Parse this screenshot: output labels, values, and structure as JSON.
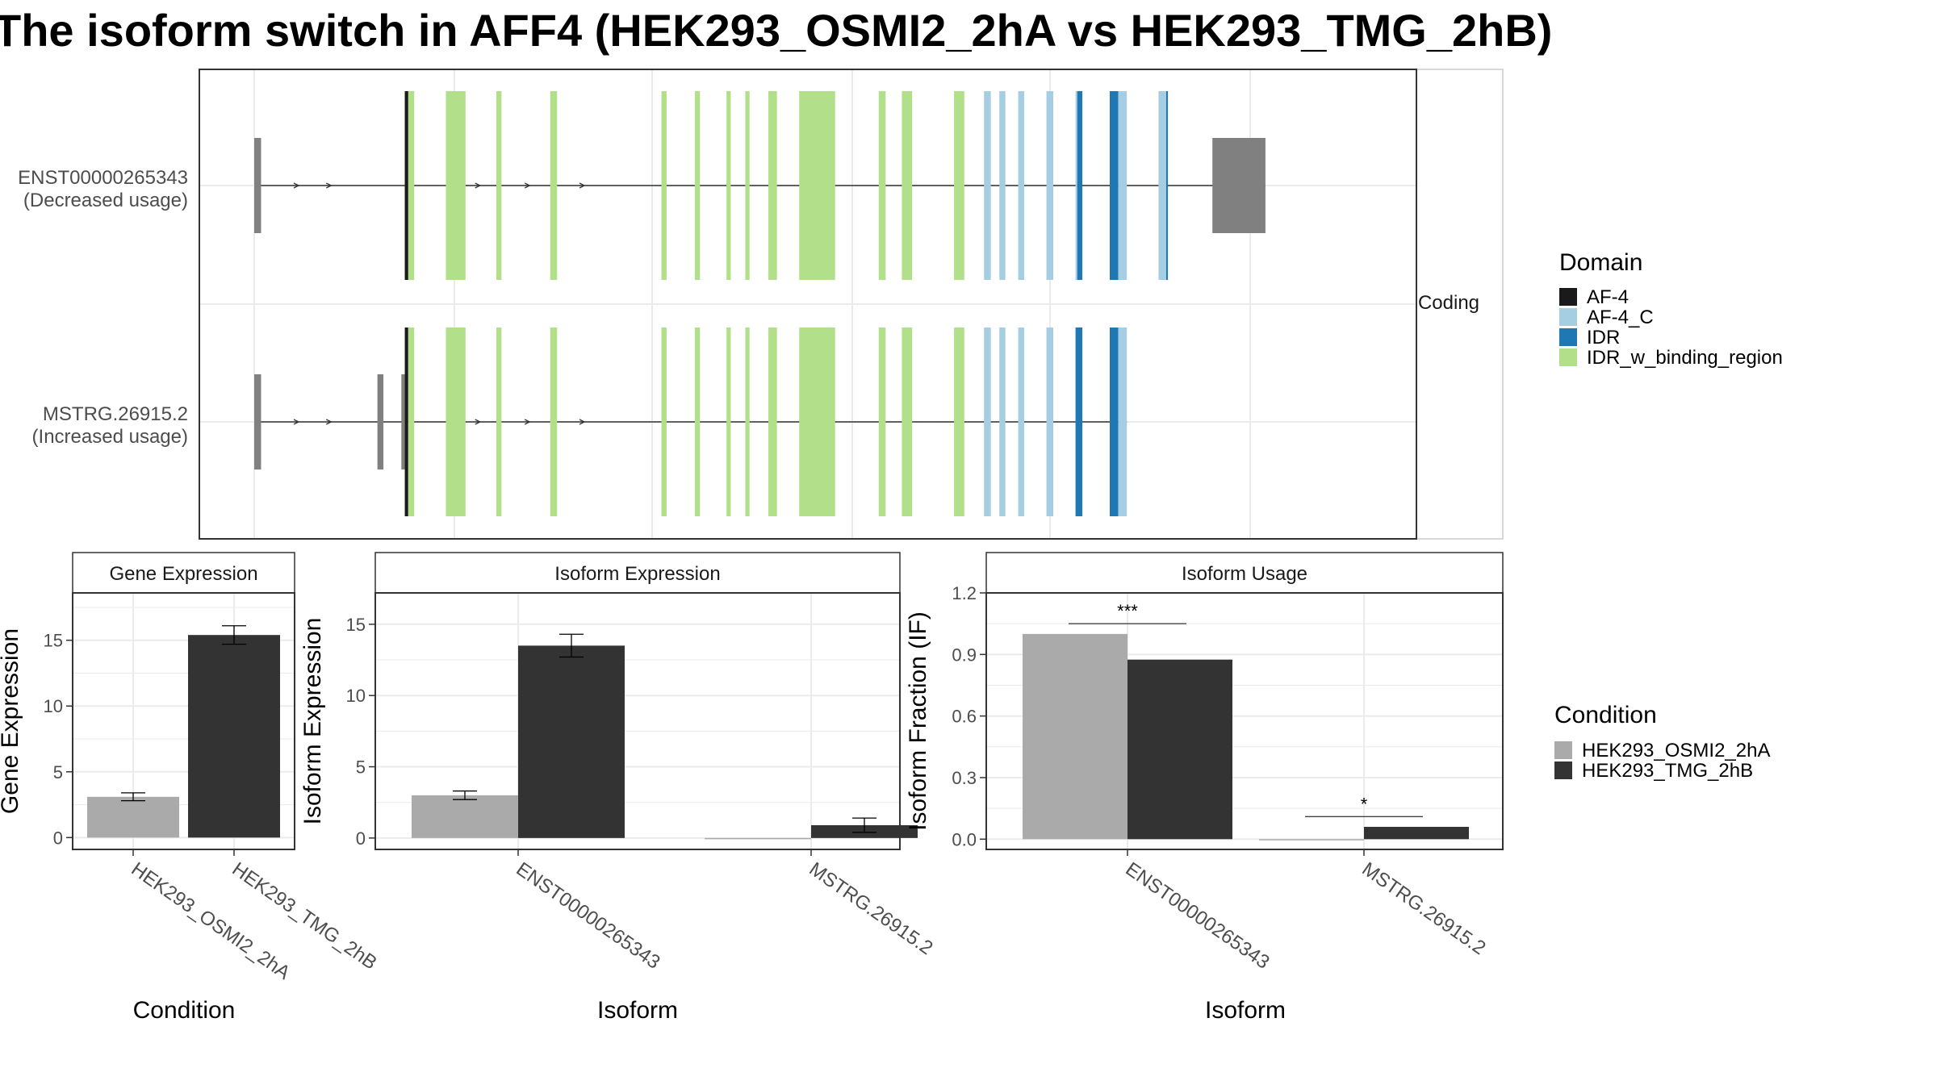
{
  "title": "The isoform switch in AFF4 (HEK293_OSMI2_2hA vs HEK293_TMG_2hB)",
  "colors": {
    "AF-4": "#1a1a1a",
    "AF-4_C": "#a6cee3",
    "IDR": "#1f78b4",
    "IDR_w_binding_region": "#b2df8a",
    "utr": "#808080",
    "cond1": "#aaaaaa",
    "cond2": "#333333"
  },
  "structure": {
    "strip_label": "Coding",
    "transcripts": [
      {
        "id": "ENST00000265343",
        "usage": "(Decreased usage)",
        "utr": [
          [
            0,
            8
          ],
          [
            1120,
            1182
          ]
        ],
        "coding": [
          [
            176,
            182
          ]
        ],
        "domains": [
          {
            "d": "AF-4",
            "s": 176,
            "e": 180
          },
          {
            "d": "IDR_w_binding_region",
            "s": 180,
            "e": 187
          },
          {
            "d": "IDR_w_binding_region",
            "s": 224,
            "e": 247
          },
          {
            "d": "IDR_w_binding_region",
            "s": 283,
            "e": 289
          },
          {
            "d": "IDR_w_binding_region",
            "s": 346,
            "e": 354
          },
          {
            "d": "IDR_w_binding_region",
            "s": 476,
            "e": 482
          },
          {
            "d": "IDR_w_binding_region",
            "s": 515,
            "e": 521
          },
          {
            "d": "IDR_w_binding_region",
            "s": 552,
            "e": 557
          },
          {
            "d": "IDR_w_binding_region",
            "s": 574,
            "e": 579
          },
          {
            "d": "IDR_w_binding_region",
            "s": 601,
            "e": 611
          },
          {
            "d": "IDR_w_binding_region",
            "s": 637,
            "e": 679
          },
          {
            "d": "IDR_w_binding_region",
            "s": 730,
            "e": 738
          },
          {
            "d": "IDR_w_binding_region",
            "s": 757,
            "e": 769
          },
          {
            "d": "IDR_w_binding_region",
            "s": 818,
            "e": 830
          },
          {
            "d": "AF-4_C",
            "s": 853,
            "e": 861
          },
          {
            "d": "AF-4_C",
            "s": 871,
            "e": 878
          },
          {
            "d": "AF-4_C",
            "s": 893,
            "e": 900
          },
          {
            "d": "AF-4_C",
            "s": 926,
            "e": 934
          },
          {
            "d": "AF-4_C",
            "s": 960,
            "e": 962
          },
          {
            "d": "IDR",
            "s": 962,
            "e": 968
          },
          {
            "d": "IDR",
            "s": 1000,
            "e": 1010
          },
          {
            "d": "AF-4_C",
            "s": 1010,
            "e": 1020
          },
          {
            "d": "AF-4_C",
            "s": 1057,
            "e": 1066
          },
          {
            "d": "IDR",
            "s": 1066,
            "e": 1068
          }
        ]
      },
      {
        "id": "MSTRG.26915.2",
        "usage": "(Increased usage)",
        "utr": [
          [
            0,
            8
          ],
          [
            144,
            151
          ],
          [
            172,
            176
          ]
        ],
        "coding": [],
        "domains": [
          {
            "d": "AF-4",
            "s": 176,
            "e": 180
          },
          {
            "d": "IDR_w_binding_region",
            "s": 180,
            "e": 187
          },
          {
            "d": "IDR_w_binding_region",
            "s": 224,
            "e": 247
          },
          {
            "d": "IDR_w_binding_region",
            "s": 283,
            "e": 289
          },
          {
            "d": "IDR_w_binding_region",
            "s": 346,
            "e": 354
          },
          {
            "d": "IDR_w_binding_region",
            "s": 476,
            "e": 482
          },
          {
            "d": "IDR_w_binding_region",
            "s": 515,
            "e": 521
          },
          {
            "d": "IDR_w_binding_region",
            "s": 552,
            "e": 557
          },
          {
            "d": "IDR_w_binding_region",
            "s": 574,
            "e": 579
          },
          {
            "d": "IDR_w_binding_region",
            "s": 601,
            "e": 611
          },
          {
            "d": "IDR_w_binding_region",
            "s": 637,
            "e": 679
          },
          {
            "d": "IDR_w_binding_region",
            "s": 730,
            "e": 738
          },
          {
            "d": "IDR_w_binding_region",
            "s": 757,
            "e": 769
          },
          {
            "d": "IDR_w_binding_region",
            "s": 818,
            "e": 830
          },
          {
            "d": "AF-4_C",
            "s": 853,
            "e": 861
          },
          {
            "d": "AF-4_C",
            "s": 871,
            "e": 878
          },
          {
            "d": "AF-4_C",
            "s": 893,
            "e": 900
          },
          {
            "d": "AF-4_C",
            "s": 926,
            "e": 934
          },
          {
            "d": "IDR",
            "s": 960,
            "e": 968
          },
          {
            "d": "IDR",
            "s": 1000,
            "e": 1010
          },
          {
            "d": "AF-4_C",
            "s": 1010,
            "e": 1020
          }
        ]
      }
    ]
  },
  "legend_domain": {
    "title": "Domain",
    "items": [
      "AF-4",
      "AF-4_C",
      "IDR",
      "IDR_w_binding_region"
    ]
  },
  "legend_condition": {
    "title": "Condition",
    "items": [
      "HEK293_OSMI2_2hA",
      "HEK293_TMG_2hB"
    ]
  },
  "chart_data": [
    {
      "type": "bar",
      "facet": "Gene Expression",
      "xlabel": "Condition",
      "ylabel": "Gene Expression",
      "categories": [
        "HEK293_OSMI2_2hA",
        "HEK293_TMG_2hB"
      ],
      "values": [
        3.1,
        15.4
      ],
      "error": [
        0.3,
        0.7
      ],
      "yticks": [
        0,
        5,
        10,
        15
      ],
      "ylim": [
        -0.9,
        18.6
      ]
    },
    {
      "type": "bar",
      "facet": "Isoform Expression",
      "xlabel": "Isoform",
      "ylabel": "Isoform Expression",
      "categories": [
        "ENST00000265343",
        "MSTRG.26915.2"
      ],
      "series": [
        {
          "name": "HEK293_OSMI2_2hA",
          "values": [
            3.0,
            0.0
          ],
          "error": [
            0.3,
            0.0
          ]
        },
        {
          "name": "HEK293_TMG_2hB",
          "values": [
            13.5,
            0.9
          ],
          "error": [
            0.8,
            0.5
          ]
        }
      ],
      "yticks": [
        0,
        5,
        10,
        15
      ],
      "ylim": [
        -0.8,
        17.2
      ]
    },
    {
      "type": "bar",
      "facet": "Isoform Usage",
      "xlabel": "Isoform",
      "ylabel": "Isoform Fraction (IF)",
      "categories": [
        "ENST00000265343",
        "MSTRG.26915.2"
      ],
      "series": [
        {
          "name": "HEK293_OSMI2_2hA",
          "values": [
            1.0,
            0.0
          ]
        },
        {
          "name": "HEK293_TMG_2hB",
          "values": [
            0.875,
            0.06
          ]
        }
      ],
      "annotations": [
        "***",
        "*"
      ],
      "yticks": [
        0.0,
        0.3,
        0.6,
        0.9,
        1.2
      ],
      "ylim": [
        -0.05,
        1.2
      ]
    }
  ]
}
